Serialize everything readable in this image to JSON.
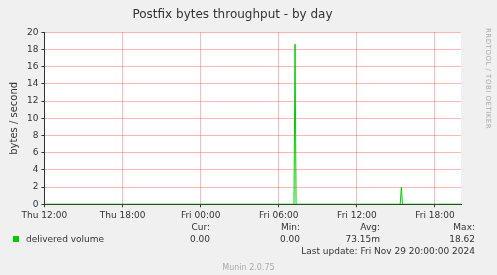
{
  "chart_data": {
    "type": "line",
    "title": "Postfix bytes throughput - by day",
    "y_label": "bytes / second",
    "x": [
      12,
      31.17,
      31.25,
      31.33,
      39.33,
      39.42,
      39.5,
      44
    ],
    "series": [
      {
        "name": "delivered volume",
        "color": "#00cc00",
        "values": [
          0,
          0,
          18.62,
          0,
          0,
          2.0,
          0,
          0
        ]
      }
    ],
    "xlim": [
      12,
      44
    ],
    "xticks": [
      {
        "value": 12,
        "label": "Thu 12:00"
      },
      {
        "value": 18,
        "label": "Thu 18:00"
      },
      {
        "value": 24,
        "label": "Fri 00:00"
      },
      {
        "value": 30,
        "label": "Fri 06:00"
      },
      {
        "value": 36,
        "label": "Fri 12:00"
      },
      {
        "value": 42,
        "label": "Fri 18:00"
      }
    ],
    "ylim": [
      0,
      20
    ],
    "yticks": [
      0,
      2,
      4,
      6,
      8,
      10,
      12,
      14,
      16,
      18,
      20
    ],
    "grid": true,
    "legend_table": {
      "headers": [
        "Cur:",
        "Min:",
        "Avg:",
        "Max:"
      ],
      "values": [
        "0.00",
        "0.00",
        "73.15m",
        "18.62"
      ]
    },
    "last_update": "Last update: Fri Nov 29 20:00:00 2024",
    "credit": "Munin 2.0.75",
    "side_text": "RRDTOOL / TOBI OETIKER"
  }
}
